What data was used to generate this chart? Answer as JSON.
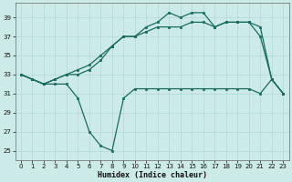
{
  "xlabel": "Humidex (Indice chaleur)",
  "ylabel": "",
  "xlim": [
    -0.5,
    23.5
  ],
  "ylim": [
    24,
    40.5
  ],
  "yticks": [
    25,
    27,
    29,
    31,
    33,
    35,
    37,
    39
  ],
  "xticks": [
    0,
    1,
    2,
    3,
    4,
    5,
    6,
    7,
    8,
    9,
    10,
    11,
    12,
    13,
    14,
    15,
    16,
    17,
    18,
    19,
    20,
    21,
    22,
    23
  ],
  "bg_color": "#cceae8",
  "line_color": "#1a6b5e",
  "grid_color": "#b0d8d5",
  "series1_x": [
    0,
    1,
    2,
    3,
    4,
    5,
    6,
    7,
    8,
    9,
    10,
    11,
    12,
    13,
    14,
    15,
    16,
    17,
    18,
    19,
    20,
    21,
    22,
    23
  ],
  "series1_y": [
    33,
    32.5,
    32,
    32.5,
    33,
    33.5,
    34,
    35,
    36,
    37,
    37,
    38,
    38.5,
    39.5,
    39,
    39.5,
    39.5,
    38,
    38.5,
    38.5,
    38.5,
    37,
    32.5,
    31
  ],
  "series2_x": [
    0,
    1,
    2,
    3,
    4,
    5,
    6,
    7,
    8,
    9,
    10,
    11,
    12,
    13,
    14,
    15,
    16,
    17,
    18,
    19,
    20,
    21,
    22,
    23
  ],
  "series2_y": [
    33,
    32.5,
    32,
    32.5,
    33,
    33,
    33.5,
    34.5,
    36,
    37,
    37,
    37.5,
    38,
    38,
    38,
    38.5,
    38.5,
    38,
    38.5,
    38.5,
    38.5,
    38,
    32.5,
    31
  ],
  "series3_x": [
    0,
    1,
    2,
    3,
    4,
    5,
    6,
    7,
    8,
    9,
    10,
    11,
    12,
    13,
    14,
    15,
    16,
    17,
    18,
    19,
    20,
    21,
    22,
    23
  ],
  "series3_y": [
    33,
    32.5,
    32,
    32,
    32,
    30.5,
    27,
    25.5,
    25,
    30.5,
    31.5,
    31.5,
    31.5,
    31.5,
    31.5,
    31.5,
    31.5,
    31.5,
    31.5,
    31.5,
    31.5,
    31,
    32.5,
    31
  ]
}
